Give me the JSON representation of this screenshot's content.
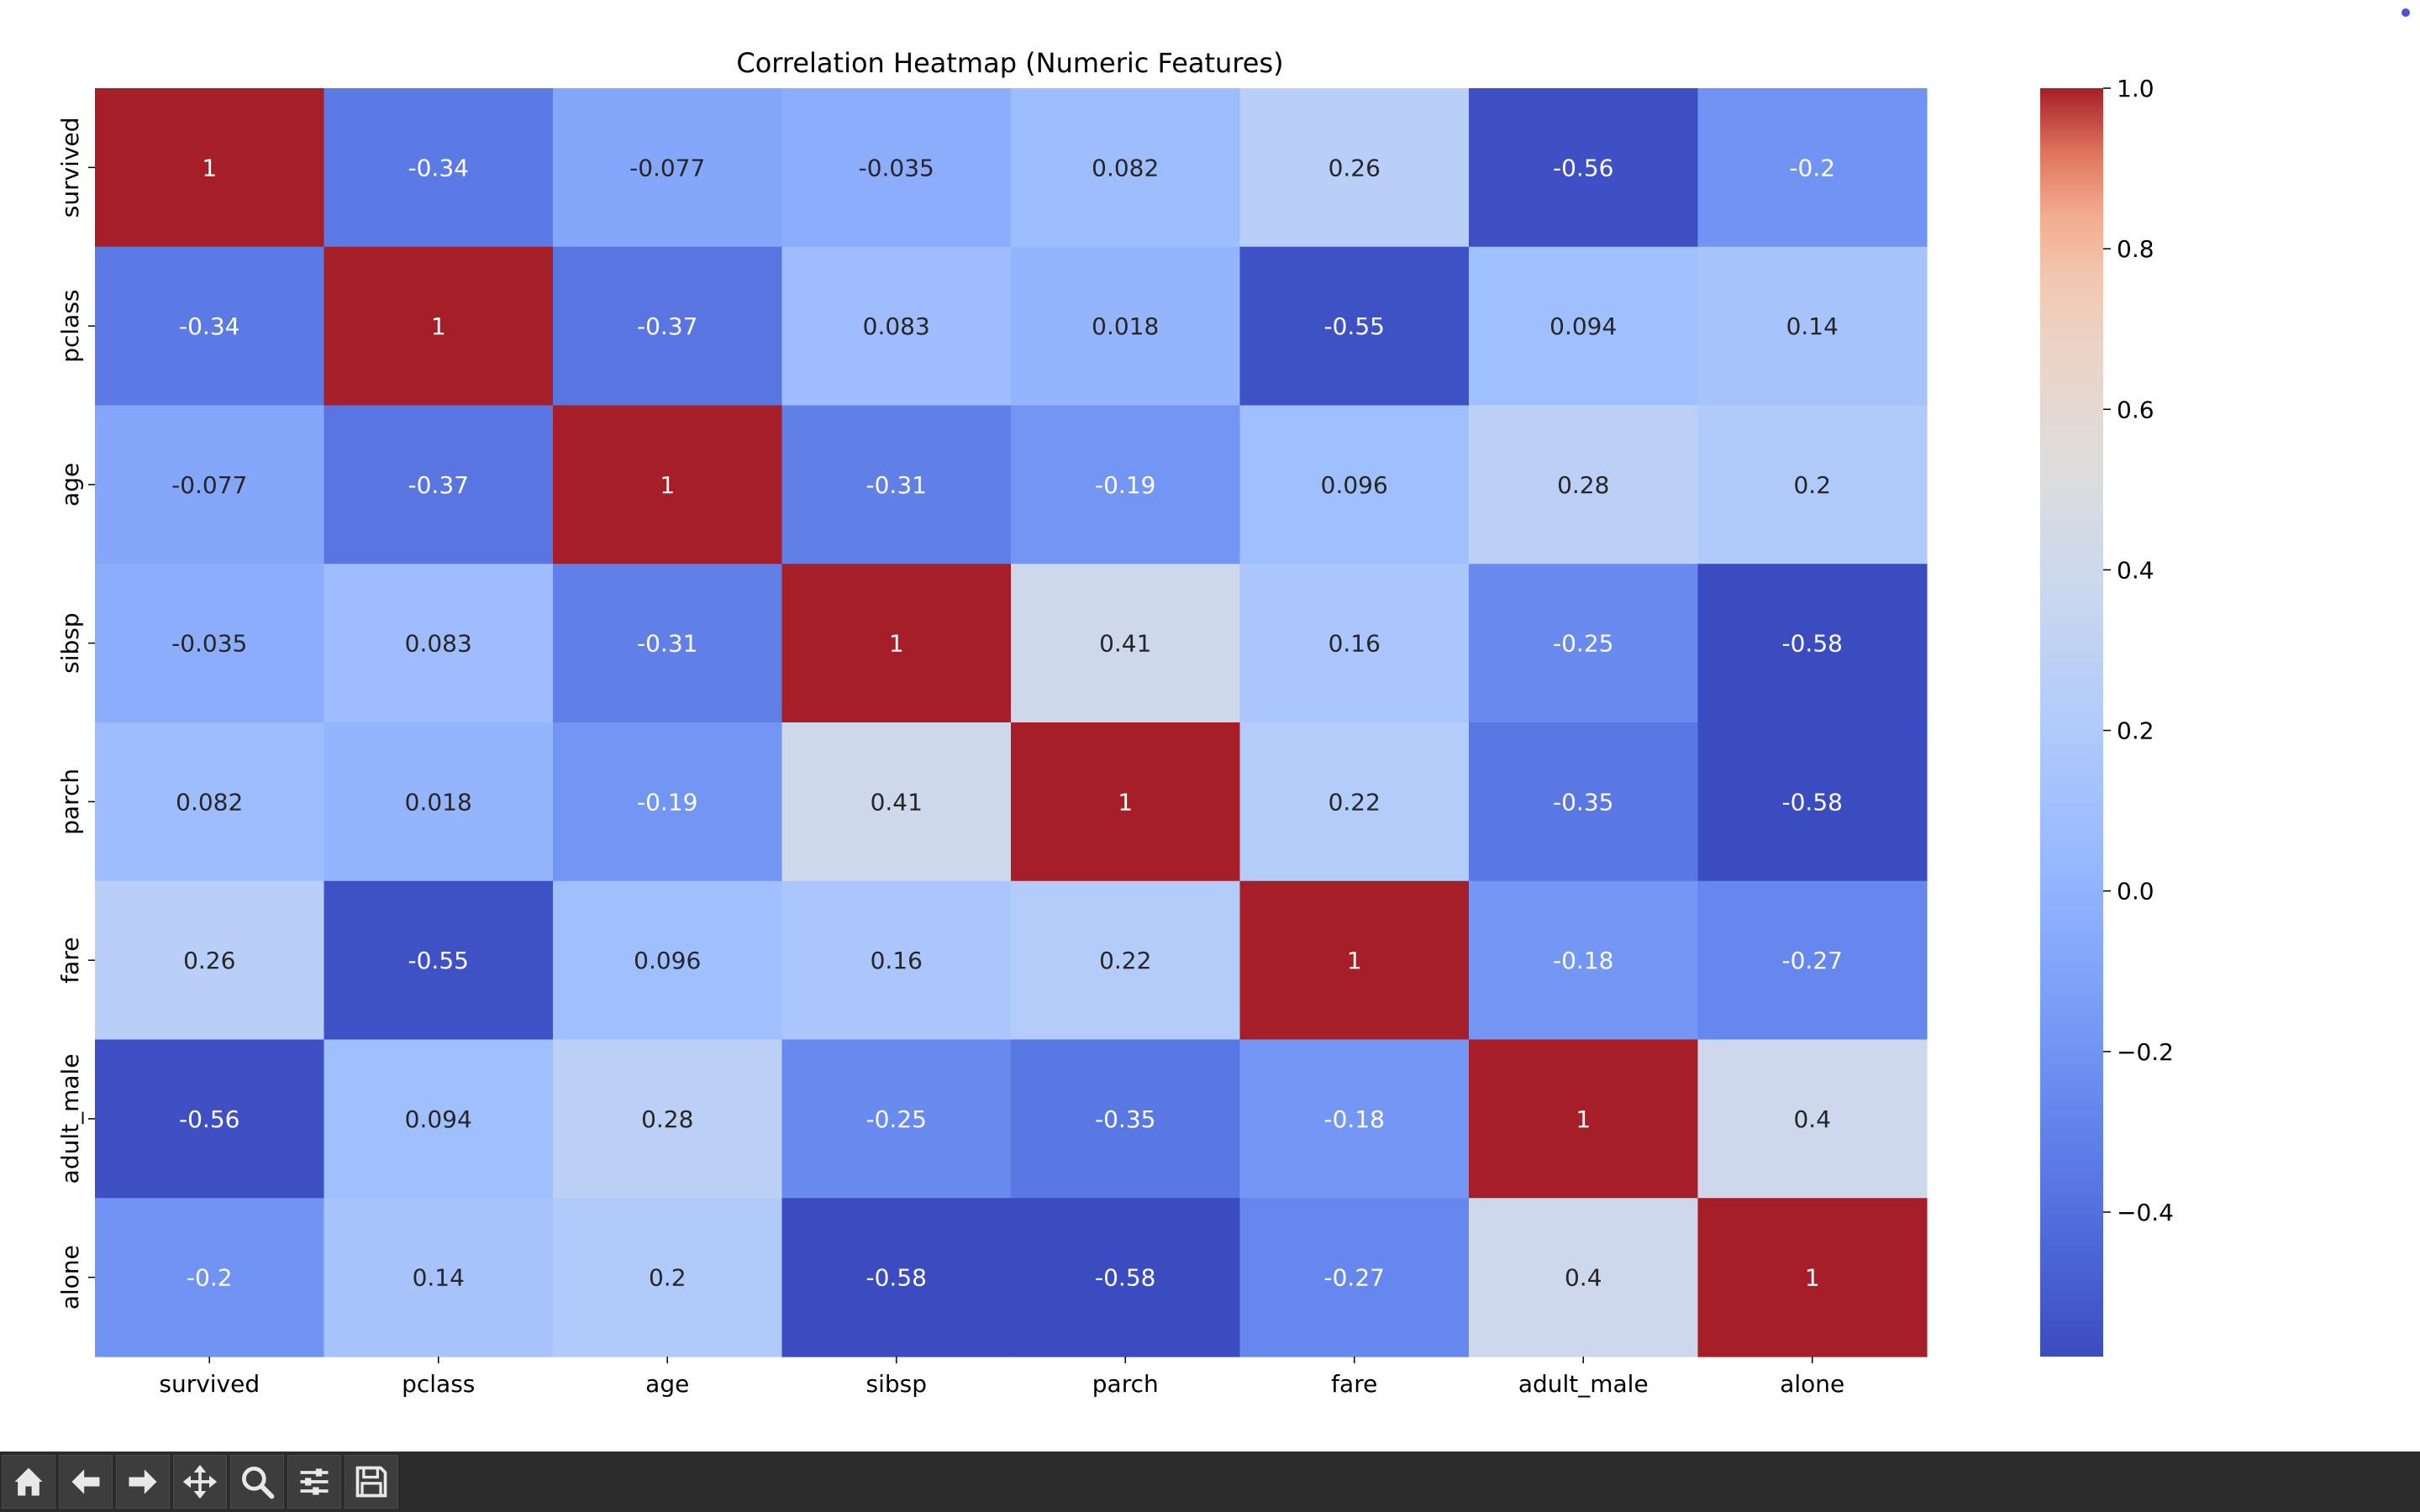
{
  "chart_data": {
    "type": "heatmap",
    "title": "Correlation Heatmap (Numeric Features)",
    "xlabel": "",
    "ylabel": "",
    "x_categories": [
      "survived",
      "pclass",
      "age",
      "sibsp",
      "parch",
      "fare",
      "adult_male",
      "alone"
    ],
    "y_categories": [
      "survived",
      "pclass",
      "age",
      "sibsp",
      "parch",
      "fare",
      "adult_male",
      "alone"
    ],
    "values": [
      [
        1,
        -0.34,
        -0.077,
        -0.035,
        0.082,
        0.26,
        -0.56,
        -0.2
      ],
      [
        -0.34,
        1,
        -0.37,
        0.083,
        0.018,
        -0.55,
        0.094,
        0.14
      ],
      [
        -0.077,
        -0.37,
        1,
        -0.31,
        -0.19,
        0.096,
        0.28,
        0.2
      ],
      [
        -0.035,
        0.083,
        -0.31,
        1,
        0.41,
        0.16,
        -0.25,
        -0.58
      ],
      [
        0.082,
        0.018,
        -0.19,
        0.41,
        1,
        0.22,
        -0.35,
        -0.58
      ],
      [
        0.26,
        -0.55,
        0.096,
        0.16,
        0.22,
        1,
        -0.18,
        -0.27
      ],
      [
        -0.56,
        0.094,
        0.28,
        -0.25,
        -0.35,
        -0.18,
        1,
        0.4
      ],
      [
        -0.2,
        0.14,
        0.2,
        -0.58,
        -0.58,
        -0.27,
        0.4,
        1
      ]
    ],
    "annotations": [
      [
        "1",
        "-0.34",
        "-0.077",
        "-0.035",
        "0.082",
        "0.26",
        "-0.56",
        "-0.2"
      ],
      [
        "-0.34",
        "1",
        "-0.37",
        "0.083",
        "0.018",
        "-0.55",
        "0.094",
        "0.14"
      ],
      [
        "-0.077",
        "-0.37",
        "1",
        "-0.31",
        "-0.19",
        "0.096",
        "0.28",
        "0.2"
      ],
      [
        "-0.035",
        "0.083",
        "-0.31",
        "1",
        "0.41",
        "0.16",
        "-0.25",
        "-0.58"
      ],
      [
        "0.082",
        "0.018",
        "-0.19",
        "0.41",
        "1",
        "0.22",
        "-0.35",
        "-0.58"
      ],
      [
        "0.26",
        "-0.55",
        "0.096",
        "0.16",
        "0.22",
        "1",
        "-0.18",
        "-0.27"
      ],
      [
        "-0.56",
        "0.094",
        "0.28",
        "-0.25",
        "-0.35",
        "-0.18",
        "1",
        "0.4"
      ],
      [
        "-0.2",
        "0.14",
        "0.2",
        "-0.58",
        "-0.58",
        "-0.27",
        "0.4",
        "1"
      ]
    ],
    "colormap": "coolwarm",
    "vmin": -0.58,
    "vmax": 1.0,
    "colorbar": {
      "ticks": [
        1.0,
        0.8,
        0.6,
        0.4,
        0.2,
        0.0,
        -0.2,
        -0.4
      ],
      "tick_labels": [
        "1.0",
        "0.8",
        "0.6",
        "0.4",
        "0.2",
        "0.0",
        "−0.2",
        "−0.4"
      ]
    },
    "grid": false
  },
  "toolbar": {
    "buttons": [
      {
        "name": "home-button",
        "icon": "home-icon"
      },
      {
        "name": "back-button",
        "icon": "arrow-left-icon"
      },
      {
        "name": "forward-button",
        "icon": "arrow-right-icon"
      },
      {
        "name": "pan-button",
        "icon": "move-icon"
      },
      {
        "name": "zoom-button",
        "icon": "magnifier-icon"
      },
      {
        "name": "configure-subplots-button",
        "icon": "sliders-icon"
      },
      {
        "name": "save-button",
        "icon": "floppy-disk-icon"
      }
    ],
    "icon_color": "#e8e8e8"
  }
}
